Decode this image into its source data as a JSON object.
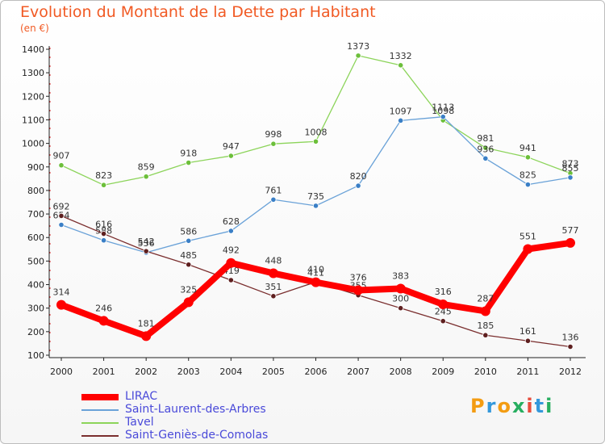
{
  "header": {
    "title": "Evolution du Montant de la Dette par Habitant",
    "unit": "(en €)"
  },
  "logo": {
    "text": "Proxiti",
    "colors": [
      "#f39c12",
      "#3498db",
      "#f39c12",
      "#27ae60",
      "#e74c3c",
      "#3498db",
      "#27ae60"
    ]
  },
  "colors": {
    "title": "#f15a24",
    "legend_text": "#4a4ad9",
    "axis": "#222222",
    "dash": "#e03a3a"
  },
  "chart_data": {
    "type": "line",
    "title": "Evolution du Montant de la Dette par Habitant",
    "subtitle": "(en €)",
    "x": [
      "2000",
      "2001",
      "2002",
      "2003",
      "2004",
      "2005",
      "2006",
      "2007",
      "2008",
      "2009",
      "2010",
      "2011",
      "2012"
    ],
    "ylim": [
      100,
      1400
    ],
    "yticks": [
      100,
      200,
      300,
      400,
      500,
      600,
      700,
      800,
      900,
      1000,
      1100,
      1200,
      1300,
      1400
    ],
    "grid": false,
    "legend_position": "bottom-left",
    "series": [
      {
        "name": "Tavel",
        "color": "#8cd45a",
        "marker": "#6cbf3a",
        "values": [
          907,
          823,
          859,
          918,
          947,
          998,
          1008,
          1373,
          1332,
          1098,
          981,
          941,
          873
        ]
      },
      {
        "name": "Saint-Laurent-des-Arbres",
        "color": "#6aa2d8",
        "marker": "#3a7fc6",
        "values": [
          654,
          588,
          536,
          586,
          628,
          761,
          735,
          820,
          1097,
          1113,
          936,
          825,
          855
        ]
      },
      {
        "name": "Saint-Geniès-de-Comolas",
        "color": "#7a2e2e",
        "marker": "#5e1f1f",
        "values": [
          692,
          616,
          542,
          485,
          419,
          351,
          411,
          355,
          300,
          245,
          185,
          161,
          136
        ]
      },
      {
        "name": "LIRAC",
        "color": "#ff0000",
        "marker": "#ff0000",
        "values": [
          314,
          246,
          181,
          325,
          492,
          448,
          410,
          376,
          383,
          316,
          287,
          551,
          577
        ]
      }
    ],
    "legend_order": [
      "LIRAC",
      "Saint-Laurent-des-Arbres",
      "Tavel",
      "Saint-Geniès-de-Comolas"
    ]
  }
}
